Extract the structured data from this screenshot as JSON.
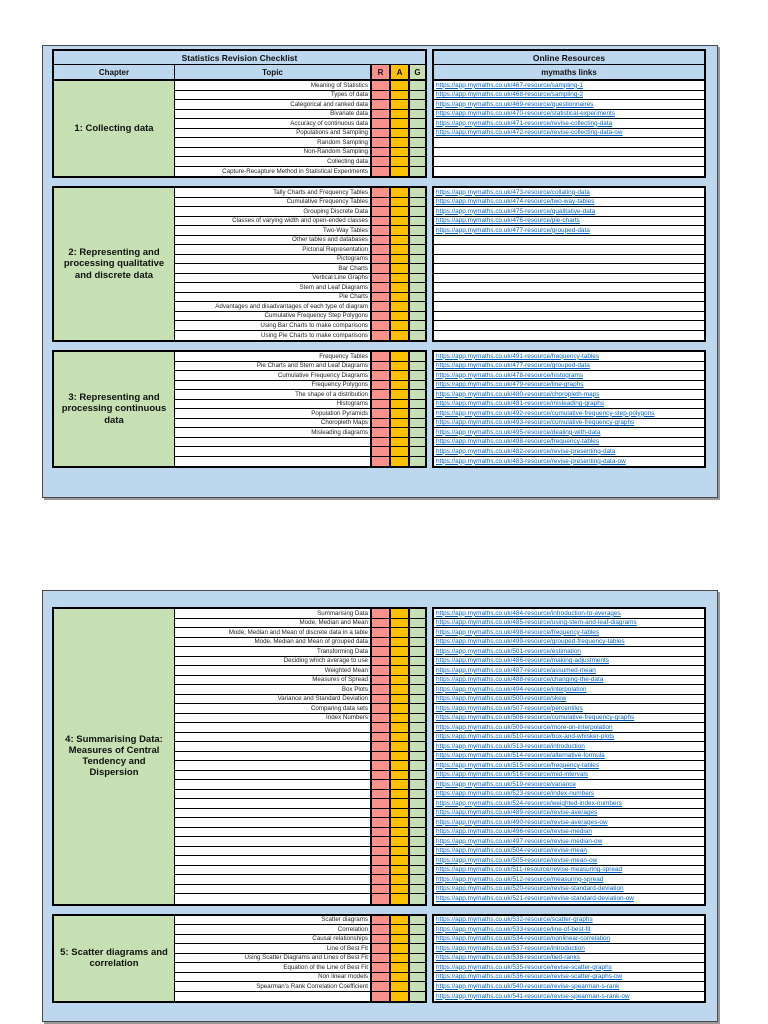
{
  "page": {
    "title_left": "Statistics  Revision Checklist",
    "title_right": "Online Resources"
  },
  "headers": {
    "chapter": "Chapter",
    "topic": "Topic",
    "r": "R",
    "a": "A",
    "g": "G",
    "links": "mymaths links"
  },
  "colors": {
    "panel_bg": "#BDD7EE",
    "chapter_bg": "#C6E0B4",
    "r_bg": "#F8908C",
    "a_bg": "#FFC000",
    "g_bg": "#C6E0B4",
    "link": "#0563C1"
  },
  "sections": [
    {
      "chapter": "1: Collecting data",
      "topics": [
        "Meaning of Statistics",
        "Types of data",
        "Categorical and ranked data",
        "Bivariate data",
        "Accuracy of continuous data",
        "Populations and Sampling",
        "Random Sampling",
        "Non-Random Sampling",
        "Collecting data",
        "Capture-Recapture Method in Statistical Experiments"
      ],
      "links": [
        "https://app.mymaths.co.uk/467-resource/sampling-1",
        "https://app.mymaths.co.uk/468-resource/sampling-2",
        "https://app.mymaths.co.uk/469-resource/questionnaires",
        "https://app.mymaths.co.uk/470-resource/statistical-experiments",
        "https://app.mymaths.co.uk/471-resource/revise-collecting-data",
        "https://app.mymaths.co.uk/472-resource/revise-collecting-data-ow",
        "",
        "",
        "",
        ""
      ]
    },
    {
      "chapter": "2: Representing and processing qualitative and discrete data",
      "topics": [
        "Tally Charts and Frequency Tables",
        "Cumulative Frequency Tables",
        "Grouping Discrete Data",
        "Classes of varying width and open-ended classes",
        "Two-Way Tables",
        "Other tables and databases",
        "Pictorial Representation",
        "Pictograms",
        "Bar Charts",
        "Vertical Line Graphs",
        "Stem and Leaf Diagrams",
        "Pie Charts",
        "Advantages and disadvantages of each type of diagram",
        "Cumulative Frequency Step Polygons",
        "Using Bar Charts to make comparisons",
        "Using Pie Charts to make comparisons"
      ],
      "links": [
        "https://app.mymaths.co.uk/473-resource/collating-data",
        "https://app.mymaths.co.uk/474-resource/two-way-tables",
        "https://app.mymaths.co.uk/475-resource/qualitative-data",
        "https://app.mymaths.co.uk/476-resource/pie-charts",
        "https://app.mymaths.co.uk/477-resource/grouped-data",
        "",
        "",
        "",
        "",
        "",
        "",
        "",
        "",
        "",
        "",
        ""
      ]
    },
    {
      "chapter": "3: Representing and processing continuous data",
      "topics": [
        "Frequency Tables",
        "Pie Charts and Stem and Leaf Diagrams",
        "Cumulative Frequency Diagrams",
        "Frequency Polygons",
        "The shape of a distribution",
        "Histograms",
        "Population Pyramids",
        "Choropleth Maps",
        "Misleading diagrams",
        "",
        "",
        ""
      ],
      "links": [
        "https://app.mymaths.co.uk/491-resource/frequency-tables",
        "https://app.mymaths.co.uk/477-resource/grouped-data",
        "https://app.mymaths.co.uk/478-resource/histograms",
        "https://app.mymaths.co.uk/479-resource/line-graphs",
        "https://app.mymaths.co.uk/480-resource/choropleth-maps",
        "https://app.mymaths.co.uk/481-resource/misleading-graphs",
        "https://app.mymaths.co.uk/492-resource/cumulative-frequency-step-polygons",
        "https://app.mymaths.co.uk/493-resource/cumulative-frequency-graphs",
        "https://app.mymaths.co.uk/495-resource/dealing-with-data",
        "https://app.mymaths.co.uk/498-resource/frequency-tables",
        "https://app.mymaths.co.uk/482-resource/revise-presenting-data",
        "https://app.mymaths.co.uk/483-resource/revise-presenting-data-ow"
      ]
    },
    {
      "chapter": "4: Summarising Data: Measures of Central Tendency and Dispersion",
      "topics": [
        "Summarising Data",
        "Mode, Median and Mean",
        "Mode, Median and Mean of discrete data in a table",
        "Mode, Median and Mean of grouped data",
        "Transforming Data",
        "Deciding which average to use",
        "Weighted Mean",
        "Measures of Spread",
        "Box Plots",
        "Variance and Standard Deviation",
        "Comparing data sets",
        "Index Numbers",
        "",
        "",
        "",
        "",
        "",
        "",
        "",
        "",
        "",
        "",
        "",
        "",
        "",
        "",
        "",
        "",
        "",
        "",
        ""
      ],
      "links": [
        "https://app.mymaths.co.uk/484-resource/introduction-to-averages",
        "https://app.mymaths.co.uk/485-resource/using-stem-and-leaf-diagrams",
        "https://app.mymaths.co.uk/498-resource/frequency-tables",
        "https://app.mymaths.co.uk/499-resource/grouped-frequency-tables",
        "https://app.mymaths.co.uk/501-resource/estimation",
        "https://app.mymaths.co.uk/486-resource/making-adjustments",
        "https://app.mymaths.co.uk/487-resource/assumed-mean",
        "https://app.mymaths.co.uk/488-resource/changing-the-data",
        "https://app.mymaths.co.uk/494-resource/interpolation",
        "https://app.mymaths.co.uk/500-resource/skew",
        "https://app.mymaths.co.uk/507-resource/percentiles",
        "https://app.mymaths.co.uk/508-resource/cumulative-frequency-graphs",
        "https://app.mymaths.co.uk/509-resource/more-on-interpolation",
        "https://app.mymaths.co.uk/510-resource/box-and-whisker-plots",
        "https://app.mymaths.co.uk/513-resource/introduction",
        "https://app.mymaths.co.uk/514-resource/alternative-formula",
        "https://app.mymaths.co.uk/515-resource/frequency-tables",
        "https://app.mymaths.co.uk/516-resource/mid-intervals",
        "https://app.mymaths.co.uk/519-resource/variance",
        "https://app.mymaths.co.uk/523-resource/index-numbers",
        "https://app.mymaths.co.uk/524-resource/weighted-index-numbers",
        "https://app.mymaths.co.uk/489-resource/revise-averages",
        "https://app.mymaths.co.uk/490-resource/revise-averages-ow",
        "https://app.mymaths.co.uk/496-resource/revise-median",
        "https://app.mymaths.co.uk/497-resource/revise-median-ow",
        "https://app.mymaths.co.uk/504-resource/revise-mean",
        "https://app.mymaths.co.uk/505-resource/revise-mean-ow",
        "https://app.mymaths.co.uk/511-resource/revise-measuring-spread",
        "https://app.mymaths.co.uk/512-resource/measuring-spread",
        "https://app.mymaths.co.uk/520-resource/revise-standard-deviation",
        "https://app.mymaths.co.uk/521-resource/revise-standard-deviation-ow"
      ]
    },
    {
      "chapter": "5: Scatter diagrams and correlation",
      "topics": [
        "Scatter diagrams",
        "Correlation",
        "Causal relationships",
        "Line of Best Fit",
        "Using Scatter Diagrams and Lines of Best Fit",
        "Equation of the Line of Best Fit",
        "Non linear models",
        "Spearman's Rank Correlation Coefficient",
        ""
      ],
      "links": [
        "https://app.mymaths.co.uk/532-resource/scatter-graphs",
        "https://app.mymaths.co.uk/533-resource/line-of-best-fit",
        "https://app.mymaths.co.uk/534-resource/nonlinear-correlation",
        "https://app.mymaths.co.uk/537-resource/introduction",
        "https://app.mymaths.co.uk/538-resource/tied-ranks",
        "https://app.mymaths.co.uk/535-resource/revise-scatter-graphs",
        "https://app.mymaths.co.uk/536-resource/revise-scatter-graphs-ow",
        "https://app.mymaths.co.uk/540-resource/revise-spearman-s-rank",
        "https://app.mymaths.co.uk/541-resource/revise-spearman-s-rank-ow"
      ]
    }
  ]
}
